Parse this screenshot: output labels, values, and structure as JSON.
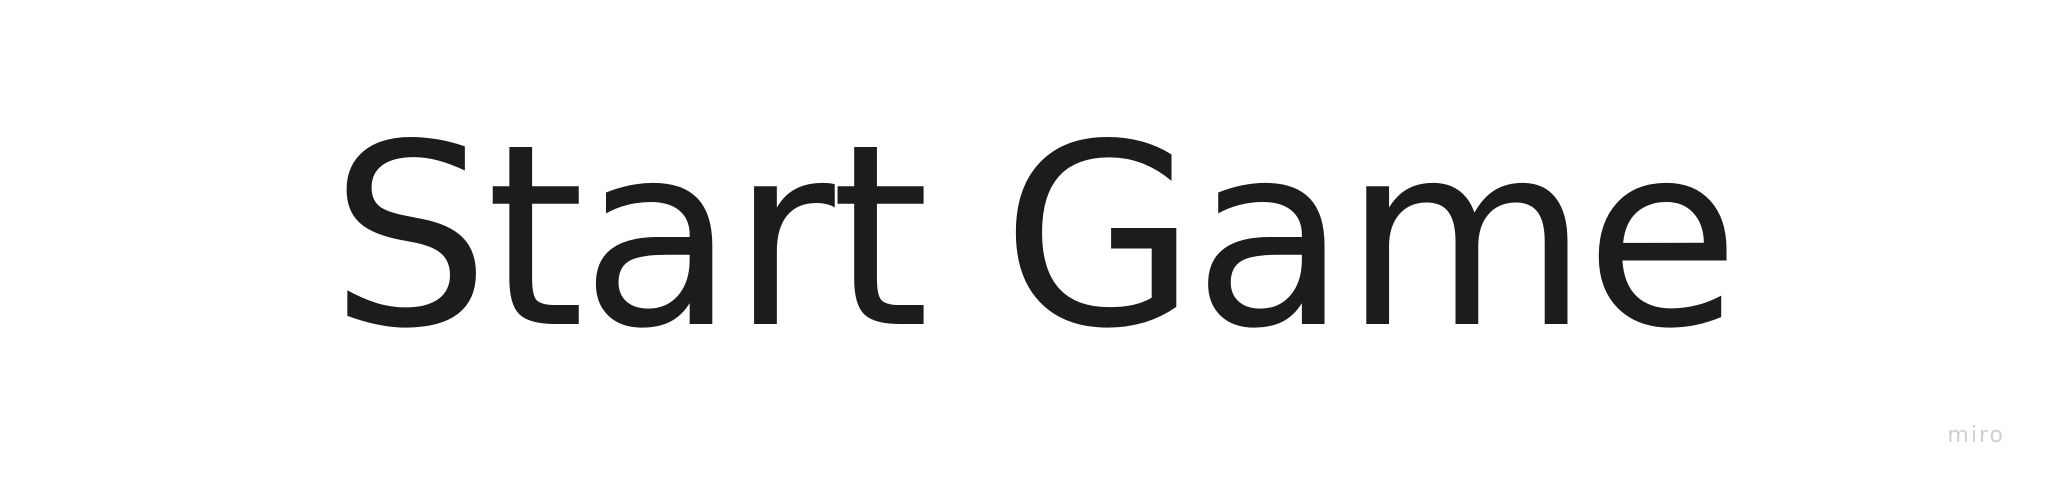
{
  "main": {
    "button_label": "Start Game"
  },
  "watermark": {
    "text": "miro"
  },
  "colors": {
    "background": "#ffffff",
    "text": "#1c1c1c",
    "watermark": "#cfcfd6"
  }
}
